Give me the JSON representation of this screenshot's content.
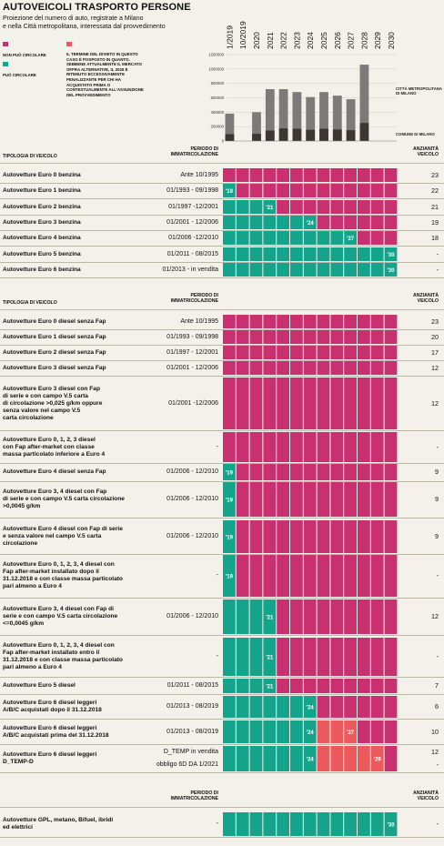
{
  "title": "AUTOVEICOLI TRASPORTO PERSONE",
  "subtitle": "Proiezione del numero di auto, registrate a Milano\ne nella Città metropolitana, interessata dal provvedimento",
  "legend": {
    "non_puo": "NON PUÒ CIRCOLARE",
    "puo": "PUÒ CIRCOLARE",
    "note": "IL TERMINE DEL DIVIETO IN QUESTO CASO È POSPOSTO IN QUANTO, SEBBENE ATTUALMENTE IL MERCATO OFFRA ALTERNATIVE, IL 2025 È RITENUTO ECCESSIVAMENTE PENALIZZANTE PER CHI HA ACQUISTATO PRIMA O CONTESTUALMENTE ALL'ASSUNZIONE DEL PROVVEDIMENTO"
  },
  "colors": {
    "magenta": "#c8306f",
    "teal": "#14a38b",
    "salmon": "#ec5a5e",
    "bar_light": "#7e7a79",
    "bar_dark": "#3c3634",
    "bg": "#f4f1ea"
  },
  "year_labels": [
    "1/2019",
    "10/2019",
    "2020",
    "2021",
    "2022",
    "2023",
    "2024",
    "2025",
    "2026",
    "2027",
    "2028",
    "2029",
    "2030"
  ],
  "chart_data": [
    {
      "type": "bar",
      "categories": [
        "1/2019",
        "10/2019",
        "2020",
        "2021",
        "2022",
        "2023",
        "2024",
        "2025",
        "2026",
        "2027",
        "2028",
        "2029",
        "2030"
      ],
      "series": [
        {
          "name": "CITTÀ METROPOLITANA DI MILANO",
          "values": [
            380000,
            0,
            400000,
            720000,
            720000,
            680000,
            610000,
            680000,
            630000,
            580000,
            1060000,
            0,
            0
          ]
        },
        {
          "name": "COMUNE DI MILANO",
          "values": [
            95000,
            0,
            100000,
            145000,
            175000,
            170000,
            155000,
            170000,
            160000,
            150000,
            250000,
            0,
            0
          ]
        }
      ],
      "yticks": [
        "0",
        "200000",
        "400000",
        "600000",
        "800000",
        "1000000",
        "1200000"
      ],
      "ylim": [
        0,
        1200000
      ]
    },
    {
      "type": "table",
      "headers": {
        "tipologia": "TIPOLOGIA DI VEICOLO",
        "periodo": "PERIODO DI\nIMMATRICOLAZIONE",
        "anzianita": "ANZIANITÀ\nVEICOLO"
      },
      "rows": [
        {
          "name": "Autovetture Euro 0 benzina",
          "period": "Ante 10/1995",
          "age": "23",
          "teal_years": 0,
          "label": "",
          "salmon_years": 0,
          "salmon_label": ""
        },
        {
          "name": "Autovetture Euro 1 benzina",
          "period": "01/1993 - 09/1998",
          "age": "22",
          "teal_years": 1,
          "label": "'19",
          "salmon_years": 0,
          "salmon_label": ""
        },
        {
          "name": "Autovetture Euro 2 benzina",
          "period": "01/1997 -12/2001",
          "age": "21",
          "teal_years": 4,
          "label": "'21",
          "salmon_years": 0,
          "salmon_label": ""
        },
        {
          "name": "Autovetture Euro 3 benzina",
          "period": "01/2001 - 12/2006",
          "age": "19",
          "teal_years": 7,
          "label": "'24",
          "salmon_years": 0,
          "salmon_label": ""
        },
        {
          "name": "Autovetture Euro 4 benzina",
          "period": "01/2006 -12/2010",
          "age": "18",
          "teal_years": 10,
          "label": "'27",
          "salmon_years": 0,
          "salmon_label": ""
        },
        {
          "name": "Autovetture Euro 5 benzina",
          "period": "01/2011 - 08/2015",
          "age": "-",
          "teal_years": 13,
          "label": "'30",
          "salmon_years": 0,
          "salmon_label": ""
        },
        {
          "name": "Autovetture Euro 6 benzina",
          "period": "01/2013 - in vendita",
          "age": "-",
          "teal_years": 13,
          "label": "'30",
          "salmon_years": 0,
          "salmon_label": ""
        },
        {
          "name": "Autovetture Euro 0 diesel senza Fap",
          "period": "Ante 10/1995",
          "age": "23",
          "teal_years": 0,
          "label": "",
          "salmon_years": 0,
          "salmon_label": ""
        },
        {
          "name": "Autovetture Euro 1 diesel senza Fap",
          "period": "01/1993 - 09/1998",
          "age": "20",
          "teal_years": 0,
          "label": "",
          "salmon_years": 0,
          "salmon_label": ""
        },
        {
          "name": "Autovetture Euro 2 diesel senza Fap",
          "period": "01/1997 - 12/2001",
          "age": "17",
          "teal_years": 0,
          "label": "",
          "salmon_years": 0,
          "salmon_label": ""
        },
        {
          "name": "Autovetture Euro 3 diesel senza Fap",
          "period": "01/2001 - 12/2006",
          "age": "12",
          "teal_years": 0,
          "label": "",
          "salmon_years": 0,
          "salmon_label": ""
        },
        {
          "name": "Autovetture Euro 3 diesel con Fap\ndi serie e con campo V.5 carta\ndi circolazione >0,025 g/km oppure\nsenza valore nel campo V.5\ncarta circolazione",
          "period": "01/2001 -12/2006",
          "age": "12",
          "teal_years": 0,
          "label": "",
          "salmon_years": 0,
          "salmon_label": ""
        },
        {
          "name": "Autovetture Euro 0, 1, 2, 3 diesel\ncon Fap after-market con classe\nmassa particolato inferiore a Euro 4",
          "period": "-",
          "age": "-",
          "teal_years": 0,
          "label": "",
          "salmon_years": 0,
          "salmon_label": ""
        },
        {
          "name": "Autovetture Euro 4 diesel senza Fap",
          "period": "01/2006 - 12/2010",
          "age": "9",
          "teal_years": 1,
          "label": "'19",
          "salmon_years": 0,
          "salmon_label": ""
        },
        {
          "name": "Autovetture Euro 3, 4 diesel con Fap\ndi serie e con campo V.5 carta circolazione\n>0,0045 g/km",
          "period": "01/2006 - 12/2010",
          "age": "9",
          "teal_years": 1,
          "label": "'19",
          "salmon_years": 0,
          "salmon_label": ""
        },
        {
          "name": "Autovetture Euro 4 diesel con Fap di serie\ne senza valore nel campo V.5 carta\ncircolazione",
          "period": "01/2006 - 12/2010",
          "age": "9",
          "teal_years": 1,
          "label": "'19",
          "salmon_years": 0,
          "salmon_label": ""
        },
        {
          "name": "Autovetture Euro 0, 1, 2, 3, 4 diesel con\nFap after-market installato dopo il\n31.12.2018 e con classe massa particolato\npari almeno a Euro 4",
          "period": "-",
          "age": "-",
          "teal_years": 1,
          "label": "'19",
          "salmon_years": 0,
          "salmon_label": ""
        },
        {
          "name": "Autovetture Euro 3, 4 diesel con Fap di\nserie e con campo V.5 carta circolazione\n<=0,0045 g/km",
          "period": "01/2006 - 12/2010",
          "age": "12",
          "teal_years": 4,
          "label": "'21",
          "salmon_years": 0,
          "salmon_label": ""
        },
        {
          "name": "Autovetture Euro 0, 1, 2, 3, 4 diesel con\nFap after-market installato entro il\n31.12.2018 e con classe massa particolato\npari almeno a Euro 4",
          "period": "-",
          "age": "-",
          "teal_years": 4,
          "label": "'21",
          "salmon_years": 0,
          "salmon_label": ""
        },
        {
          "name": "Autovetture Euro 5 diesel",
          "period": "01/2011 - 08/2015",
          "age": "7",
          "teal_years": 4,
          "label": "'21",
          "salmon_years": 0,
          "salmon_label": ""
        },
        {
          "name": "Autovetture Euro 6 diesel  leggeri\nA/B/C acquistati dopo il 31.12.2018",
          "period": "01/2013 - 08/2019",
          "age": "6",
          "teal_years": 7,
          "label": "'24",
          "salmon_years": 0,
          "salmon_label": ""
        },
        {
          "name": "Autovetture Euro 6 diesel  leggeri\nA/B/C acquistati prima del 31.12.2018",
          "period": "01/2013 - 08/2019",
          "age": "10",
          "teal_years": 7,
          "label": "'24",
          "salmon_years": 3,
          "salmon_label": "'27"
        },
        {
          "name": "Autovetture Euro 6 diesel  leggeri\nD_TEMP-D",
          "period": "D_TEMP in vendita",
          "period2": "obbligo 6D DA 1/2021",
          "age": "12",
          "age2": "-",
          "teal_years": 7,
          "label": "'24",
          "salmon_years": 5,
          "salmon_label": "'29"
        },
        {
          "name": "Autovetture GPL, metano, Bifuel, ibridi\ned elettrici",
          "period": "-",
          "age": "-",
          "teal_years": 13,
          "label": "'30",
          "salmon_years": 0,
          "salmon_label": ""
        }
      ]
    }
  ],
  "labels": {
    "metro": "CITTÀ METROPOLITANA\nDI MILANO",
    "comune": "COMUNE DI MILANO"
  }
}
